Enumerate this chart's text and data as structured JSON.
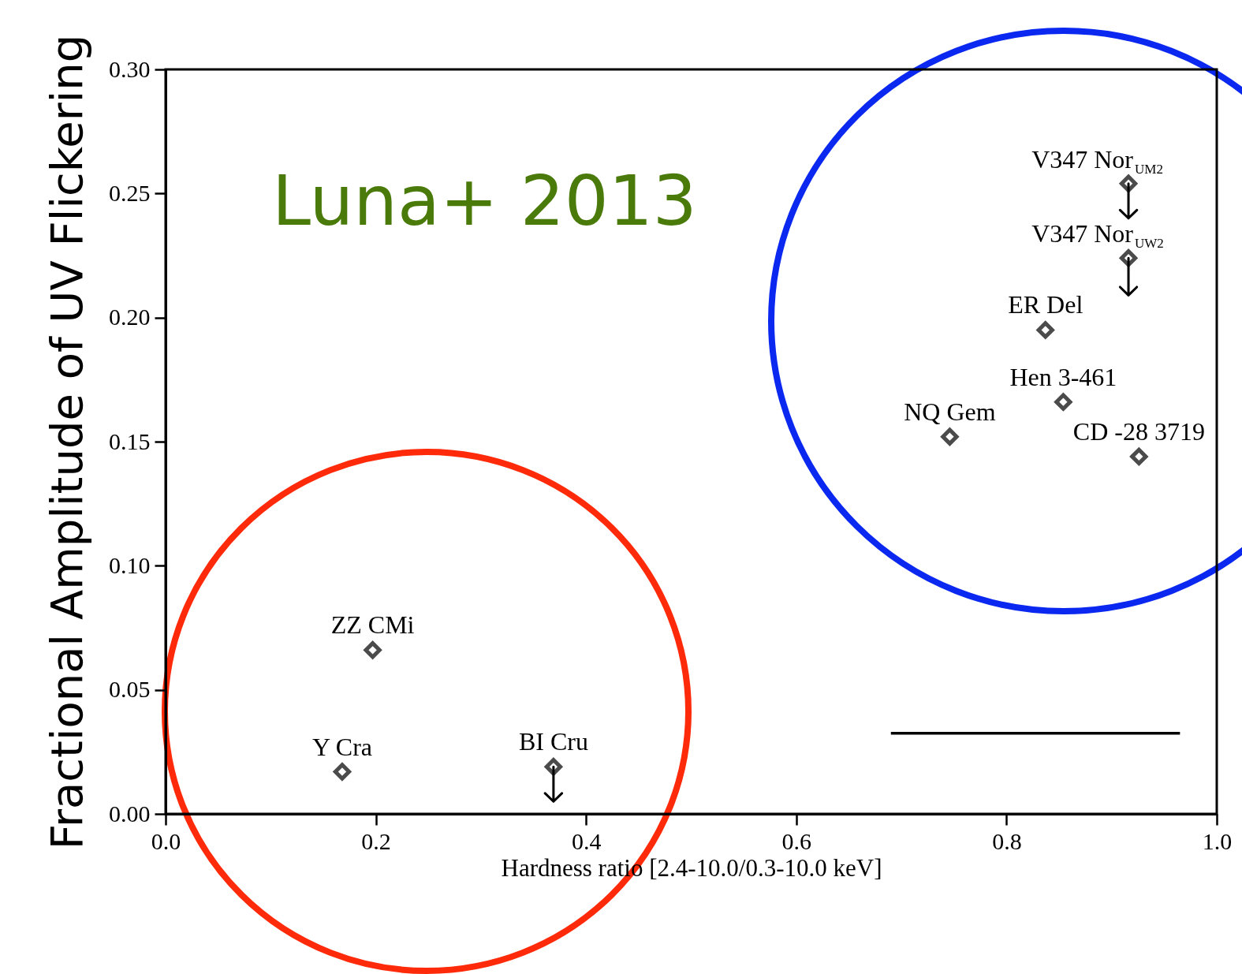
{
  "chart_data": {
    "type": "scatter",
    "xlabel": "Hardness ratio [2.4-10.0/0.3-10.0 keV]",
    "ylabel": "Fractional Amplitude of UV Flickering",
    "annotations": [
      "Luna+ 2013"
    ],
    "xlim": [
      0,
      1
    ],
    "xticks": [
      {
        "value": 0,
        "label": "0.0"
      },
      {
        "value": 0.2,
        "label": "0.2"
      },
      {
        "value": 0.4,
        "label": "0.4"
      },
      {
        "value": 0.6,
        "label": "0.6"
      },
      {
        "value": 0.8,
        "label": "0.8"
      },
      {
        "value": 1,
        "label": "1.0"
      }
    ],
    "ylim": [
      0,
      0.3
    ],
    "yticks": [
      {
        "value": 0,
        "label": "0.00"
      },
      {
        "value": 0.05,
        "label": "0.05"
      },
      {
        "value": 0.1,
        "label": "0.10"
      },
      {
        "value": 0.15,
        "label": "0.15"
      },
      {
        "value": 0.2,
        "label": "0.20"
      },
      {
        "value": 0.25,
        "label": "0.25"
      },
      {
        "value": 0.3,
        "label": "0.30"
      }
    ],
    "grid": false,
    "legend": false,
    "marker": "diamond",
    "series": [
      {
        "name": "ZZ CMi",
        "color": "#000000",
        "x": [
          0.197
        ],
        "values": [
          0.066
        ]
      },
      {
        "name": "Y Cra",
        "color": "#000000",
        "x": [
          0.168
        ],
        "values": [
          0.017
        ]
      },
      {
        "name": "BI Cru",
        "color": "#000000",
        "x": [
          0.369
        ],
        "values": [
          0.019
        ],
        "errors": [
          [
            0.005,
            0.019
          ]
        ]
      },
      {
        "name": "NQ Gem",
        "color": "#000000",
        "x": [
          0.746
        ],
        "values": [
          0.152
        ]
      },
      {
        "name": "ER Del",
        "color": "#000000",
        "x": [
          0.837
        ],
        "values": [
          0.195
        ]
      },
      {
        "name": "Hen 3-461",
        "color": "#000000",
        "x": [
          0.854
        ],
        "values": [
          0.166
        ]
      },
      {
        "name": "CD -28 3719",
        "color": "#000000",
        "x": [
          0.926
        ],
        "values": [
          0.144
        ]
      },
      {
        "name": "V347 Nor$_{UM2}$",
        "color": "#000000",
        "x": [
          0.916
        ],
        "values": [
          0.254
        ],
        "errors": [
          [
            0.24,
            0.254
          ]
        ]
      },
      {
        "name": "V347 Nor$_{UW2}$",
        "color": "#000000",
        "x": [
          0.916
        ],
        "values": [
          0.224
        ],
        "errors": [
          [
            0.209,
            0.224
          ]
        ]
      },
      {
        "type": "line",
        "color": "#000000",
        "x": [
          0.69,
          0.965
        ],
        "values": [
          0.0325,
          0.0325
        ],
        "line_style": "solid",
        "marker": "none"
      }
    ]
  }
}
